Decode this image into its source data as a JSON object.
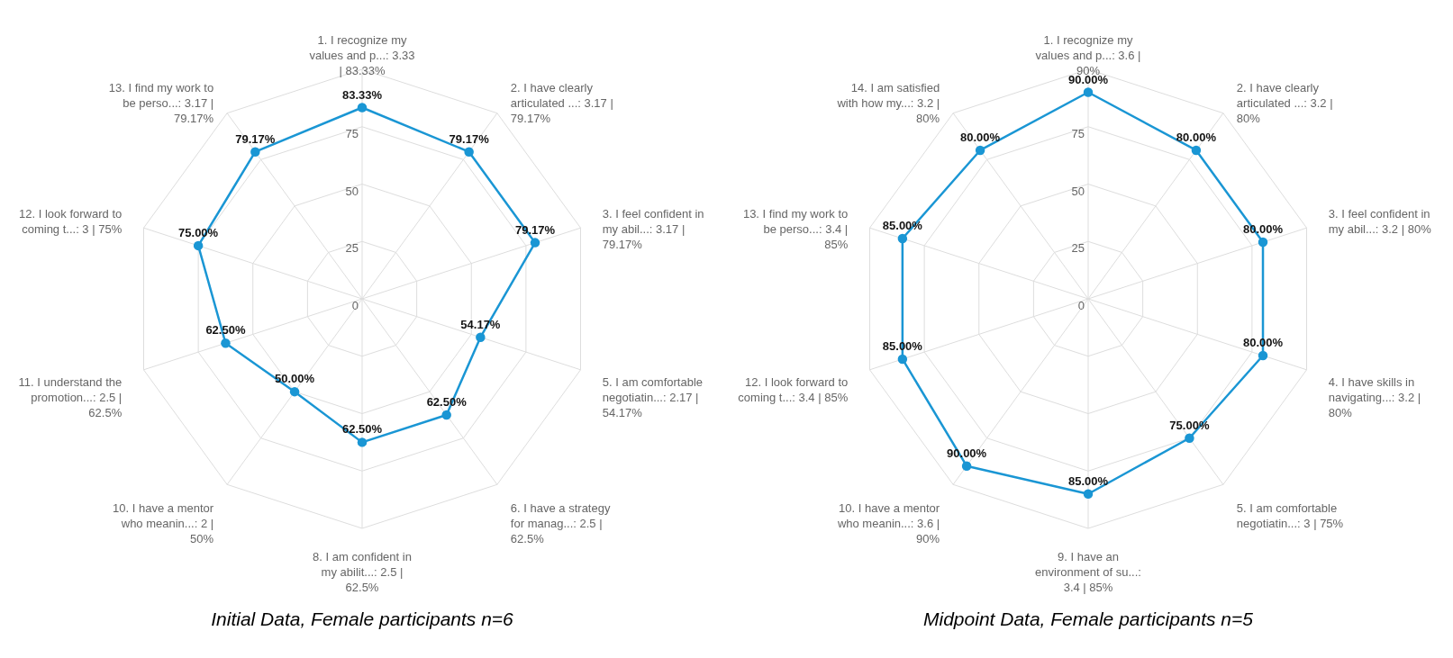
{
  "chart_data": [
    {
      "type": "radar",
      "title": "Initial Data, Female participants n=6",
      "categories": [
        "1. I recognize my\nvalues and p...: 3.33\n| 83.33%",
        "2. I have clearly\narticulated ...: 3.17 |\n79.17%",
        "3. I feel confident in\nmy abil...: 3.17 |\n79.17%",
        "5. I am comfortable\nnegotiatin...: 2.17 |\n54.17%",
        "6. I have a strategy\nfor manag...: 2.5 |\n62.5%",
        "8. I am confident in\nmy abilit...: 2.5 |\n62.5%",
        "10. I have a mentor\nwho meanin...: 2 |\n50%",
        "11. I understand the\npromotion...: 2.5 |\n62.5%",
        "12. I look forward to\ncoming t...: 3 | 75%",
        "13. I find my work to\nbe perso...: 3.17 |\n79.17%"
      ],
      "series": [
        {
          "color": "#1a96d4",
          "values": [
            83.33,
            79.17,
            79.17,
            54.17,
            62.5,
            62.5,
            50,
            62.5,
            75,
            79.17
          ],
          "value_labels": [
            "83.33%",
            "79.17%",
            "79.17%",
            "54.17%",
            "62.50%",
            "62.50%",
            "50.00%",
            "62.50%",
            "75.00%",
            "79.17%"
          ]
        }
      ],
      "ylim": [
        0,
        100
      ],
      "yticks": [
        0,
        25,
        50,
        75
      ],
      "grid": true,
      "marker": "circle"
    },
    {
      "type": "radar",
      "title": "Midpoint Data, Female participants n=5",
      "categories": [
        "1. I recognize my\nvalues and p...: 3.6 |\n90%",
        "2. I have clearly\narticulated ...: 3.2 |\n80%",
        "3. I feel confident in\nmy abil...: 3.2 | 80%",
        "4. I have skills in\nnavigating...: 3.2 |\n80%",
        "5. I am comfortable\nnegotiatin...: 3 | 75%",
        "9. I have an\nenvironment of su...:\n3.4 | 85%",
        "10. I have a mentor\nwho meanin...: 3.6 |\n90%",
        "12. I look forward to\ncoming t...: 3.4 | 85%",
        "13. I find my work to\nbe perso...: 3.4 |\n85%",
        "14. I am satisfied\nwith how my...: 3.2 |\n80%"
      ],
      "series": [
        {
          "color": "#1a96d4",
          "values": [
            90,
            80,
            80,
            80,
            75,
            85,
            90,
            85,
            85,
            80
          ],
          "value_labels": [
            "90.00%",
            "80.00%",
            "80.00%",
            "80.00%",
            "75.00%",
            "85.00%",
            "90.00%",
            "85.00%",
            "85.00%",
            "80.00%"
          ]
        }
      ],
      "ylim": [
        0,
        100
      ],
      "yticks": [
        0,
        25,
        50,
        75
      ],
      "grid": true,
      "marker": "circle"
    }
  ]
}
